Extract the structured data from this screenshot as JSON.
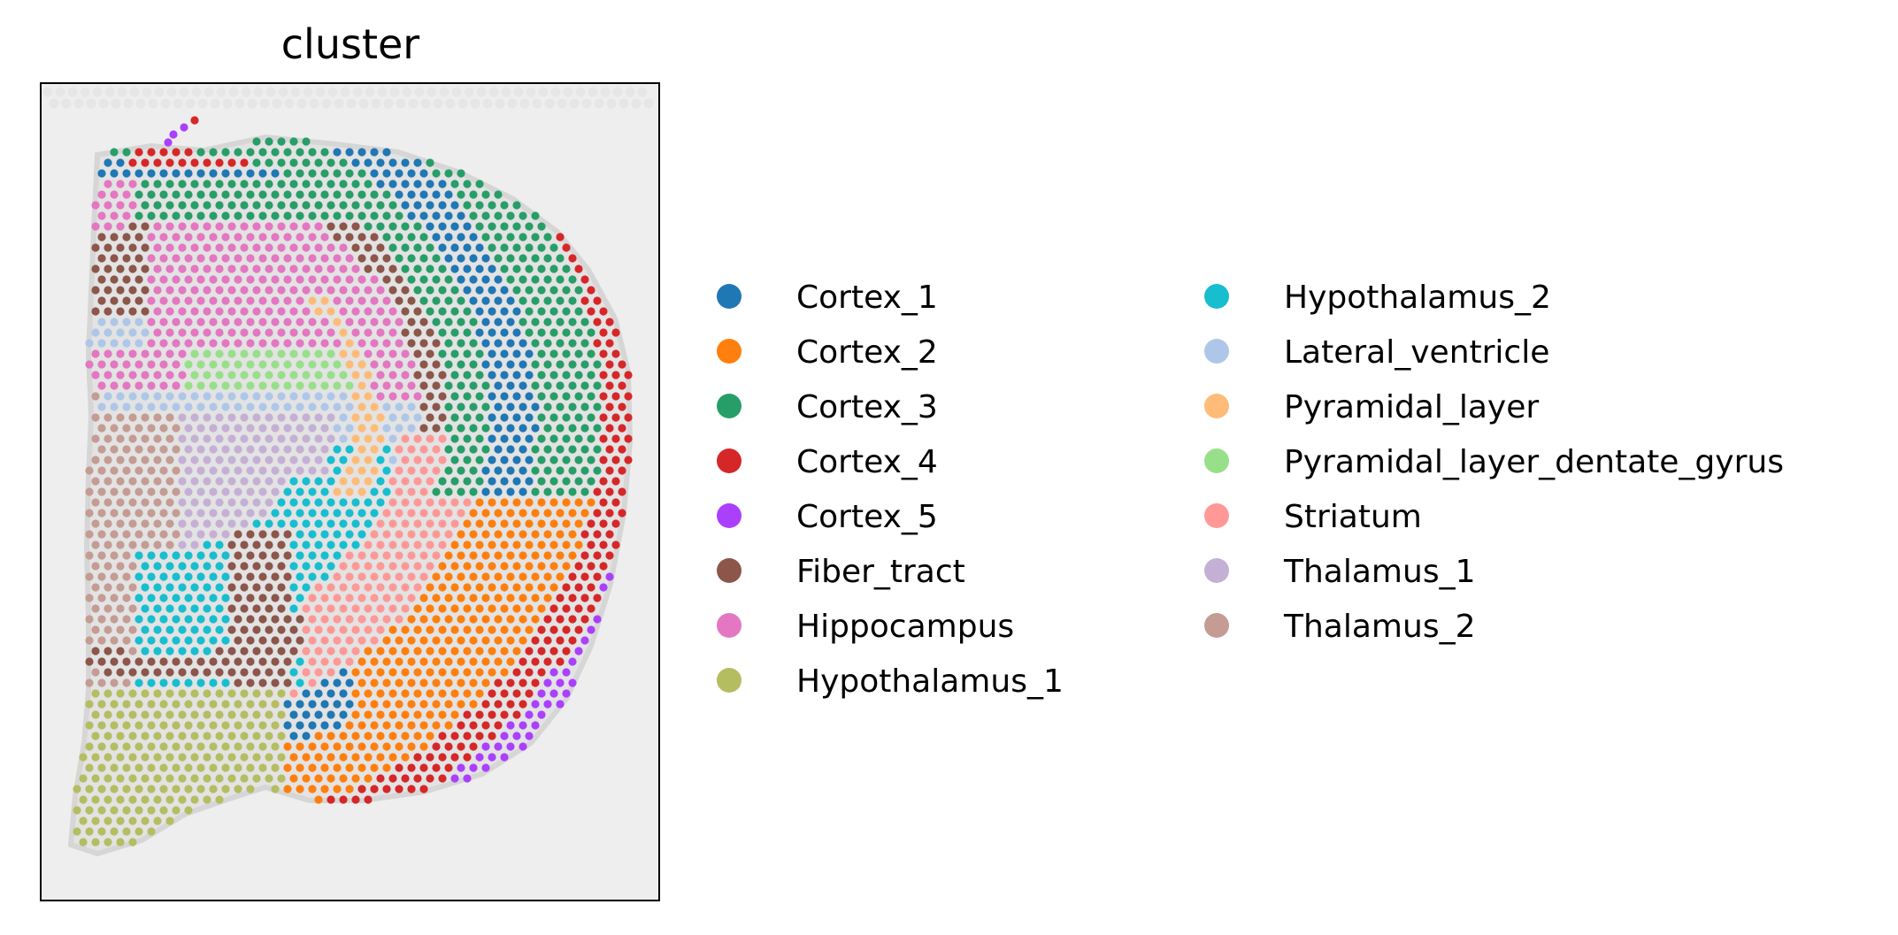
{
  "chart_data": {
    "type": "scatter",
    "title": "cluster",
    "xlabel": "",
    "ylabel": "",
    "axes_ticks": "none",
    "background_image": "tissue",
    "legend_placement": "right",
    "legend_columns": 2,
    "categories": [
      {
        "name": "Cortex_1",
        "color": "#1f77b4"
      },
      {
        "name": "Cortex_2",
        "color": "#ff7f0e"
      },
      {
        "name": "Cortex_3",
        "color": "#279e68"
      },
      {
        "name": "Cortex_4",
        "color": "#d62728"
      },
      {
        "name": "Cortex_5",
        "color": "#aa40fc"
      },
      {
        "name": "Fiber_tract",
        "color": "#8c564b"
      },
      {
        "name": "Hippocampus",
        "color": "#e377c2"
      },
      {
        "name": "Hypothalamus_1",
        "color": "#b5bd61"
      },
      {
        "name": "Hypothalamus_2",
        "color": "#17becf"
      },
      {
        "name": "Lateral_ventricle",
        "color": "#aec7e8"
      },
      {
        "name": "Pyramidal_layer",
        "color": "#ffbb78"
      },
      {
        "name": "Pyramidal_layer_dentate_gyrus",
        "color": "#98df8a"
      },
      {
        "name": "Striatum",
        "color": "#ff9896"
      },
      {
        "name": "Thalamus_1",
        "color": "#c5b0d5"
      },
      {
        "name": "Thalamus_2",
        "color": "#c49c94"
      }
    ]
  }
}
